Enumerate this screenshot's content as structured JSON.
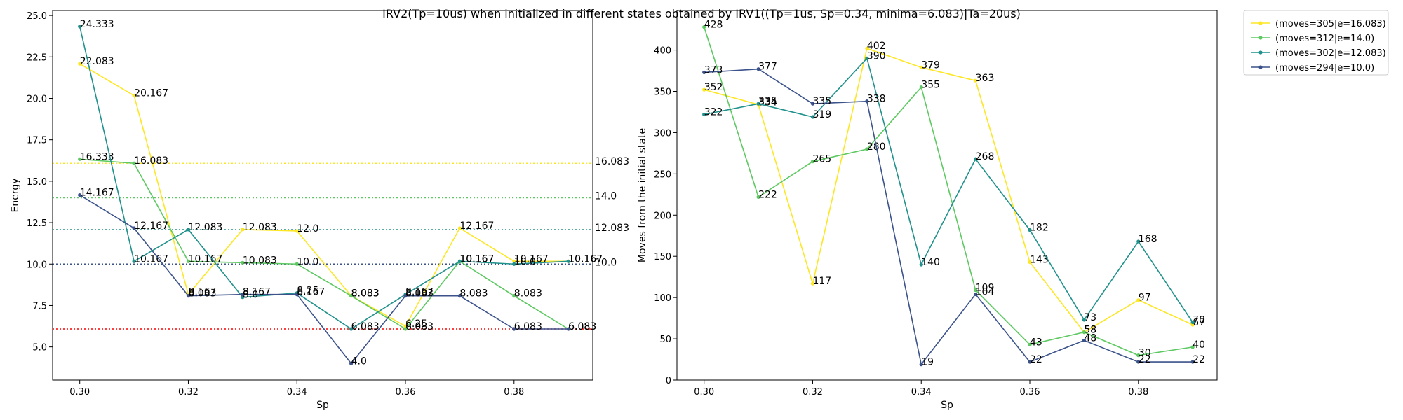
{
  "title": "IRV2(Tp=10us) when initialized in different states obtained by IRV1((Tp=1us, Sp=0.34, minima=6.083)|Ta=20us)",
  "legend": {
    "placement": "outside-top-right",
    "entries": [
      {
        "label": "(moves=305|e=16.083)",
        "color": "#fde725"
      },
      {
        "label": "(moves=312|e=14.0)",
        "color": "#5ec962"
      },
      {
        "label": "(moves=302|e=12.083)",
        "color": "#21918c"
      },
      {
        "label": "(moves=294|e=10.0)",
        "color": "#3b528b"
      }
    ]
  },
  "chart_data": [
    {
      "type": "line",
      "xlabel": "Sp",
      "ylabel": "Energy",
      "xlim": [
        0.295,
        0.3945
      ],
      "ylim": [
        3.0,
        25.3
      ],
      "xticks": [
        "0.30",
        "0.32",
        "0.34",
        "0.36",
        "0.38"
      ],
      "yticks": [
        "5.0",
        "7.5",
        "10.0",
        "12.5",
        "15.0",
        "17.5",
        "20.0",
        "22.5",
        "25.0"
      ],
      "x": [
        0.3,
        0.31,
        0.32,
        0.33,
        0.34,
        0.35,
        0.36,
        0.37,
        0.38,
        0.39
      ],
      "hlines": [
        {
          "value": 16.083,
          "label": "16.083",
          "color": "#fde725"
        },
        {
          "value": 14.0,
          "label": "14.0",
          "color": "#5ec962"
        },
        {
          "value": 12.083,
          "label": "12.083",
          "color": "#21918c"
        },
        {
          "value": 10.0,
          "label": "10.0",
          "color": "#3b528b"
        },
        {
          "value": 6.083,
          "label": "",
          "color": "#ff0000"
        }
      ],
      "series": [
        {
          "name": "(moves=305|e=16.083)",
          "color": "#fde725",
          "values": [
            22.083,
            20.167,
            8.167,
            12.083,
            12.0,
            8.083,
            6.25,
            12.167,
            10.167,
            10.167
          ],
          "labels": [
            "22.083",
            "20.167",
            "8.167",
            "12.083",
            "12.0",
            "8.083",
            "6.25",
            "12.167",
            "10.167",
            "10.167"
          ]
        },
        {
          "name": "(moves=312|e=14.0)",
          "color": "#5ec962",
          "values": [
            16.333,
            16.083,
            10.167,
            10.083,
            10.0,
            8.083,
            6.083,
            10.167,
            8.083,
            6.083
          ],
          "labels": [
            "16.333",
            "16.083",
            "10.167",
            "10.083",
            "10.0",
            "8.083",
            "6.083",
            "10.167",
            "8.083",
            "6.083"
          ]
        },
        {
          "name": "(moves=302|e=12.083)",
          "color": "#21918c",
          "values": [
            24.333,
            10.167,
            12.083,
            8.0,
            8.25,
            6.083,
            8.167,
            10.167,
            10.0,
            10.167
          ],
          "labels": [
            "24.333",
            "10.167",
            "12.083",
            "8.0",
            "8.25",
            "6.083",
            "8.167",
            "10.167",
            "10.0",
            "10.167"
          ]
        },
        {
          "name": "(moves=294|e=10.0)",
          "color": "#3b528b",
          "values": [
            14.167,
            12.167,
            8.083,
            8.167,
            8.167,
            4.0,
            8.083,
            8.083,
            6.083,
            6.083
          ],
          "labels": [
            "14.167",
            "12.167",
            "8.083",
            "8.167",
            "8.167",
            "4.0",
            "8.083",
            "8.083",
            "6.083",
            "6.083"
          ]
        }
      ]
    },
    {
      "type": "line",
      "xlabel": "Sp",
      "ylabel": "Moves from the initial state",
      "xlim": [
        0.295,
        0.3945
      ],
      "ylim": [
        0,
        448
      ],
      "xticks": [
        "0.30",
        "0.32",
        "0.34",
        "0.36",
        "0.38"
      ],
      "yticks": [
        "0",
        "50",
        "100",
        "150",
        "200",
        "250",
        "300",
        "350",
        "400"
      ],
      "x": [
        0.3,
        0.31,
        0.32,
        0.33,
        0.34,
        0.35,
        0.36,
        0.37,
        0.38,
        0.39
      ],
      "series": [
        {
          "name": "(moves=305|e=16.083)",
          "color": "#fde725",
          "values": [
            352,
            334,
            117,
            402,
            379,
            363,
            143,
            58,
            97,
            67
          ],
          "labels": [
            "352",
            "334",
            "117",
            "402",
            "379",
            "363",
            "143",
            "58",
            "97",
            "67"
          ]
        },
        {
          "name": "(moves=312|e=14.0)",
          "color": "#5ec962",
          "values": [
            428,
            222,
            265,
            280,
            355,
            109,
            43,
            58,
            30,
            40
          ],
          "labels": [
            "428",
            "222",
            "265",
            "280",
            "355",
            "109",
            "43",
            "58",
            "30",
            "40"
          ]
        },
        {
          "name": "(moves=302|e=12.083)",
          "color": "#21918c",
          "values": [
            322,
            335,
            319,
            390,
            140,
            268,
            182,
            73,
            168,
            70
          ],
          "labels": [
            "322",
            "335",
            "319",
            "390",
            "140",
            "268",
            "182",
            "73",
            "168",
            "70"
          ]
        },
        {
          "name": "(moves=294|e=10.0)",
          "color": "#3b528b",
          "values": [
            373,
            377,
            335,
            338,
            19,
            104,
            22,
            48,
            22,
            22
          ],
          "labels": [
            "373",
            "377",
            "335",
            "338",
            "19",
            "104",
            "22",
            "48",
            "22",
            "22"
          ]
        }
      ]
    }
  ]
}
